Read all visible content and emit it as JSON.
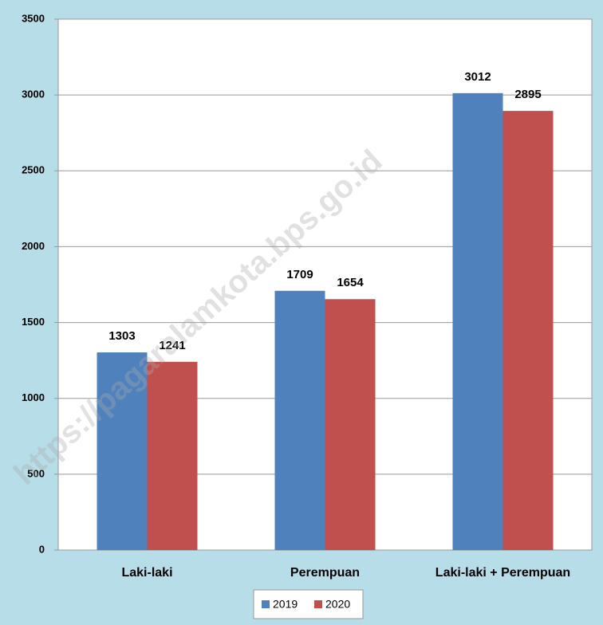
{
  "chart_data": {
    "type": "bar",
    "categories": [
      "Laki-laki",
      "Perempuan",
      "Laki-laki + Perempuan"
    ],
    "series": [
      {
        "name": "2019",
        "color": "#4f81bd",
        "values": [
          1303,
          1709,
          3012
        ]
      },
      {
        "name": "2020",
        "color": "#c0504d",
        "values": [
          1241,
          1654,
          2895
        ]
      }
    ],
    "ylim": [
      0,
      3500
    ],
    "yticks": [
      0,
      500,
      1000,
      1500,
      2000,
      2500,
      3000,
      3500
    ],
    "grid": true,
    "legend": "bottom",
    "watermark": "https://pagaralamkota.bps.go.id"
  }
}
